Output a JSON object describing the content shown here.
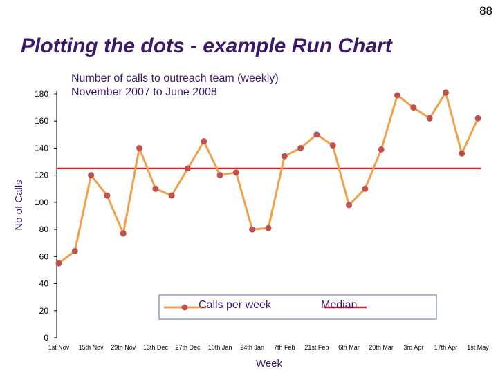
{
  "page_number": "88",
  "slide_title": "Plotting the dots - example Run Chart",
  "colors": {
    "title": "#3b1a6b",
    "line": "#f0a04b",
    "marker": "#c0504d",
    "median": "#e02020",
    "legend_border": "#5b6fa8"
  },
  "chart_data": {
    "type": "line",
    "title_lines": [
      "Number of calls to outreach team (weekly)",
      "November 2007 to June 2008"
    ],
    "xlabel": "Week",
    "ylabel": "No of Calls",
    "ylim": [
      0,
      180
    ],
    "yticks": [
      0,
      20,
      40,
      60,
      80,
      100,
      120,
      140,
      160,
      180
    ],
    "x_tick_labels": [
      "1st Nov",
      "15th Nov",
      "29th Nov",
      "13th Dec",
      "27th Dec",
      "10th Jan",
      "24th Jan",
      "7th Feb",
      "21st Feb",
      "6th Mar",
      "20th Mar",
      "3rd Apr",
      "17th Apr",
      "1st May"
    ],
    "series": [
      {
        "name": "Calls per week",
        "values": [
          55,
          64,
          120,
          105,
          77,
          140,
          110,
          105,
          125,
          145,
          120,
          122,
          80,
          81,
          134,
          140,
          150,
          142,
          98,
          110,
          139,
          179,
          170,
          162,
          181,
          136,
          162
        ]
      }
    ],
    "median": {
      "name": "Median",
      "value": 125
    },
    "grid": false,
    "legend_position": "bottom-right"
  }
}
